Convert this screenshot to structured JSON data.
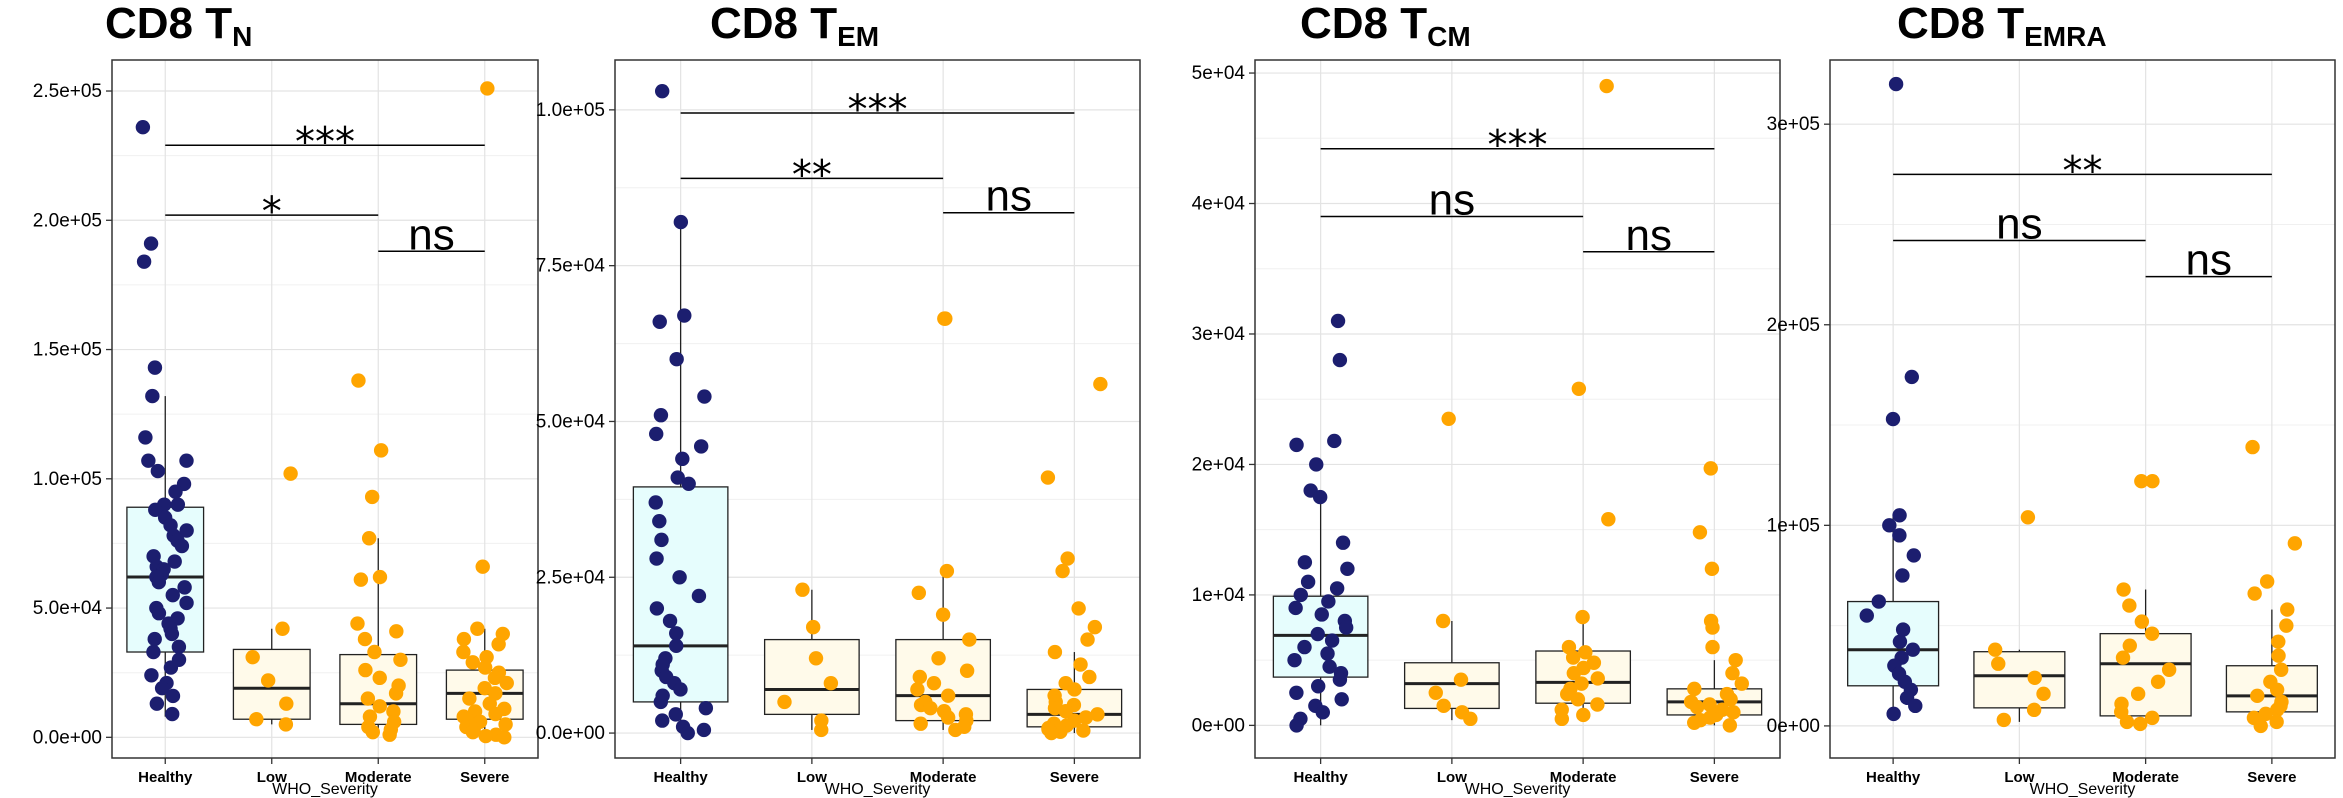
{
  "chart_data": [
    {
      "type": "box",
      "title_main": "CD8 T",
      "title_sub": "N",
      "xlabel": "WHO_Severity",
      "categories": [
        "Healthy",
        "Low",
        "Moderate",
        "Severe"
      ],
      "ylim": [
        -8000,
        262000
      ],
      "yticks": [
        0,
        50000,
        100000,
        150000,
        200000,
        250000
      ],
      "ytick_labels": [
        "0.0e+00",
        "5.0e+04",
        "1.0e+05",
        "1.5e+05",
        "2.0e+05",
        "2.5e+05"
      ],
      "box_colors": [
        "#e6fdfd",
        "#fffaea",
        "#fffaea",
        "#fffaea"
      ],
      "point_colors": [
        "#1c1e6f",
        "#ffa500",
        "#ffa500",
        "#ffa500"
      ],
      "boxes": [
        {
          "q1": 33000,
          "median": 62000,
          "q3": 89000,
          "whisker_low": 8000,
          "whisker_high": 132000
        },
        {
          "q1": 7000,
          "median": 19000,
          "q3": 34000,
          "whisker_low": 5000,
          "whisker_high": 42000
        },
        {
          "q1": 5000,
          "median": 13000,
          "q3": 32000,
          "whisker_low": 1000,
          "whisker_high": 77000
        },
        {
          "q1": 7000,
          "median": 17000,
          "q3": 26000,
          "whisker_low": 0,
          "whisker_high": 42000
        }
      ],
      "points": [
        [
          236000,
          191000,
          184000,
          143000,
          132000,
          116000,
          107000,
          107000,
          103000,
          98000,
          95000,
          90000,
          90000,
          88000,
          85000,
          82000,
          80000,
          78000,
          76000,
          74000,
          70000,
          68000,
          66000,
          65000,
          63000,
          62000,
          60000,
          58000,
          55000,
          52000,
          50000,
          48000,
          46000,
          44000,
          42000,
          40000,
          38000,
          35000,
          33000,
          30000,
          27000,
          24000,
          21000,
          19000,
          16000,
          13000,
          9000
        ],
        [
          102000,
          42000,
          31000,
          22000,
          13000,
          7000,
          5000
        ],
        [
          138000,
          111000,
          93000,
          77000,
          62000,
          61000,
          44000,
          41000,
          38000,
          33000,
          30000,
          26000,
          23000,
          20000,
          17000,
          15000,
          12000,
          10000,
          8000,
          6000,
          4000,
          3000,
          2000,
          1000
        ],
        [
          251000,
          66000,
          42000,
          40000,
          38000,
          36000,
          33000,
          31000,
          29000,
          27000,
          25000,
          23000,
          21000,
          19000,
          17000,
          15000,
          13000,
          11000,
          10000,
          9000,
          8000,
          7000,
          6000,
          5000,
          4000,
          3000,
          2000,
          1000,
          500,
          0
        ]
      ],
      "comparisons": [
        {
          "from": 0,
          "to": 3,
          "y": 229000,
          "label": "***"
        },
        {
          "from": 0,
          "to": 2,
          "y": 202000,
          "label": "*"
        },
        {
          "from": 2,
          "to": 3,
          "y": 188000,
          "label": "ns"
        }
      ]
    },
    {
      "type": "box",
      "title_main": "CD8 T",
      "title_sub": "EM",
      "xlabel": "WHO_Severity",
      "categories": [
        "Healthy",
        "Low",
        "Moderate",
        "Severe"
      ],
      "ylim": [
        -4000,
        108000
      ],
      "yticks": [
        0,
        25000,
        50000,
        75000,
        100000
      ],
      "ytick_labels": [
        "0.0e+00",
        "2.5e+04",
        "5.0e+04",
        "7.5e+04",
        "1.0e+05"
      ],
      "box_colors": [
        "#e6fdfd",
        "#fffaea",
        "#fffaea",
        "#fffaea"
      ],
      "point_colors": [
        "#1c1e6f",
        "#ffa500",
        "#ffa500",
        "#ffa500"
      ],
      "boxes": [
        {
          "q1": 5000,
          "median": 14000,
          "q3": 39500,
          "whisker_low": 0,
          "whisker_high": 82000
        },
        {
          "q1": 3000,
          "median": 7000,
          "q3": 15000,
          "whisker_low": 500,
          "whisker_high": 23000
        },
        {
          "q1": 2000,
          "median": 6000,
          "q3": 15000,
          "whisker_low": 500,
          "whisker_high": 26000
        },
        {
          "q1": 1000,
          "median": 3000,
          "q3": 7000,
          "whisker_low": 0,
          "whisker_high": 13000
        }
      ],
      "points": [
        [
          103000,
          82000,
          67000,
          66000,
          60000,
          54000,
          51000,
          48000,
          46000,
          44000,
          41000,
          40000,
          37000,
          34000,
          31000,
          28000,
          25000,
          22000,
          20000,
          18000,
          16000,
          14000,
          12000,
          11000,
          10000,
          9000,
          8000,
          7000,
          6000,
          5000,
          4000,
          3000,
          2000,
          1000,
          500,
          0
        ],
        [
          23000,
          17000,
          12000,
          8000,
          5000,
          2000,
          500
        ],
        [
          66500,
          66500,
          26000,
          22500,
          19000,
          15000,
          12000,
          10000,
          9000,
          8000,
          7000,
          6000,
          5000,
          4500,
          4000,
          3500,
          3000,
          2500,
          2000,
          1500,
          1000,
          500
        ],
        [
          56000,
          41000,
          28000,
          26000,
          20000,
          17000,
          15000,
          13000,
          11000,
          9000,
          8000,
          7000,
          6000,
          5000,
          4500,
          4000,
          3500,
          3000,
          2500,
          2000,
          1500,
          1200,
          1000,
          800,
          600,
          400,
          200,
          0
        ]
      ],
      "comparisons": [
        {
          "from": 0,
          "to": 3,
          "y": 99500,
          "label": "***"
        },
        {
          "from": 0,
          "to": 2,
          "y": 89000,
          "label": "**"
        },
        {
          "from": 2,
          "to": 3,
          "y": 83500,
          "label": "ns"
        }
      ]
    },
    {
      "type": "box",
      "title_main": "CD8 T",
      "title_sub": "CM",
      "xlabel": "WHO_Severity",
      "categories": [
        "Healthy",
        "Low",
        "Moderate",
        "Severe"
      ],
      "ylim": [
        -2500,
        51000
      ],
      "yticks": [
        0,
        10000,
        20000,
        30000,
        40000,
        50000
      ],
      "ytick_labels": [
        "0e+00",
        "1e+04",
        "2e+04",
        "3e+04",
        "4e+04",
        "5e+04"
      ],
      "box_colors": [
        "#e6fdfd",
        "#fffaea",
        "#fffaea",
        "#fffaea"
      ],
      "point_colors": [
        "#1c1e6f",
        "#ffa500",
        "#ffa500",
        "#ffa500"
      ],
      "boxes": [
        {
          "q1": 3700,
          "median": 6900,
          "q3": 9900,
          "whisker_low": 0,
          "whisker_high": 18000
        },
        {
          "q1": 1300,
          "median": 3200,
          "q3": 4800,
          "whisker_low": 400,
          "whisker_high": 8000
        },
        {
          "q1": 1700,
          "median": 3300,
          "q3": 5700,
          "whisker_low": 500,
          "whisker_high": 8300
        },
        {
          "q1": 800,
          "median": 1800,
          "q3": 2800,
          "whisker_low": 0,
          "whisker_high": 5000
        }
      ],
      "points": [
        [
          31000,
          28000,
          21800,
          21500,
          20000,
          18000,
          17500,
          14000,
          12500,
          12000,
          11000,
          10500,
          10000,
          9500,
          9000,
          8500,
          8000,
          7500,
          7000,
          6500,
          6000,
          5500,
          5000,
          4500,
          4000,
          3500,
          3000,
          2500,
          2000,
          1500,
          1000,
          500,
          0
        ],
        [
          23500,
          8000,
          3500,
          2500,
          1500,
          1000,
          500
        ],
        [
          49000,
          25800,
          15800,
          8300,
          6000,
          5600,
          5200,
          4800,
          4400,
          4000,
          3600,
          3200,
          2800,
          2400,
          2000,
          1600,
          1200,
          800,
          500
        ],
        [
          19700,
          14800,
          12000,
          8000,
          7500,
          6000,
          5000,
          4000,
          3200,
          2800,
          2400,
          2000,
          1800,
          1600,
          1400,
          1200,
          1000,
          800,
          600,
          400,
          200,
          0
        ]
      ],
      "comparisons": [
        {
          "from": 0,
          "to": 3,
          "y": 44200,
          "label": "***"
        },
        {
          "from": 0,
          "to": 2,
          "y": 39000,
          "label": "ns"
        },
        {
          "from": 2,
          "to": 3,
          "y": 36300,
          "label": "ns"
        }
      ]
    },
    {
      "type": "box",
      "title_main": "CD8 T",
      "title_sub": "EMRA",
      "xlabel": "WHO_Severity",
      "categories": [
        "Healthy",
        "Low",
        "Moderate",
        "Severe"
      ],
      "ylim": [
        -16000,
        332000
      ],
      "yticks": [
        0,
        100000,
        200000,
        300000
      ],
      "ytick_labels": [
        "0e+00",
        "1e+05",
        "2e+05",
        "3e+05"
      ],
      "box_colors": [
        "#e6fdfd",
        "#fffaea",
        "#fffaea",
        "#fffaea"
      ],
      "point_colors": [
        "#1c1e6f",
        "#ffa500",
        "#ffa500",
        "#ffa500"
      ],
      "boxes": [
        {
          "q1": 20000,
          "median": 38000,
          "q3": 62000,
          "whisker_low": 6000,
          "whisker_high": 105000
        },
        {
          "q1": 9000,
          "median": 25000,
          "q3": 37000,
          "whisker_low": 2000,
          "whisker_high": 38000
        },
        {
          "q1": 5000,
          "median": 31000,
          "q3": 46000,
          "whisker_low": 1000,
          "whisker_high": 68000
        },
        {
          "q1": 7000,
          "median": 15000,
          "q3": 30000,
          "whisker_low": 0,
          "whisker_high": 58000
        }
      ],
      "points": [
        [
          320000,
          174000,
          153000,
          105000,
          100000,
          95000,
          85000,
          75000,
          62000,
          55000,
          48000,
          42000,
          38000,
          34000,
          30000,
          26000,
          22000,
          18000,
          14000,
          10000,
          6000
        ],
        [
          104000,
          38000,
          31000,
          24000,
          16000,
          8000,
          3000
        ],
        [
          122000,
          122000,
          68000,
          60000,
          52000,
          46000,
          40000,
          34000,
          28000,
          22000,
          16000,
          11000,
          7000,
          4000,
          2000,
          1000
        ],
        [
          139000,
          91000,
          72000,
          66000,
          58000,
          50000,
          42000,
          35000,
          28000,
          22000,
          18000,
          15000,
          12000,
          10000,
          8000,
          6000,
          4000,
          2000,
          0
        ]
      ],
      "comparisons": [
        {
          "from": 0,
          "to": 3,
          "y": 275000,
          "label": "**"
        },
        {
          "from": 0,
          "to": 2,
          "y": 242000,
          "label": "ns"
        },
        {
          "from": 2,
          "to": 3,
          "y": 224000,
          "label": "ns"
        }
      ]
    }
  ]
}
